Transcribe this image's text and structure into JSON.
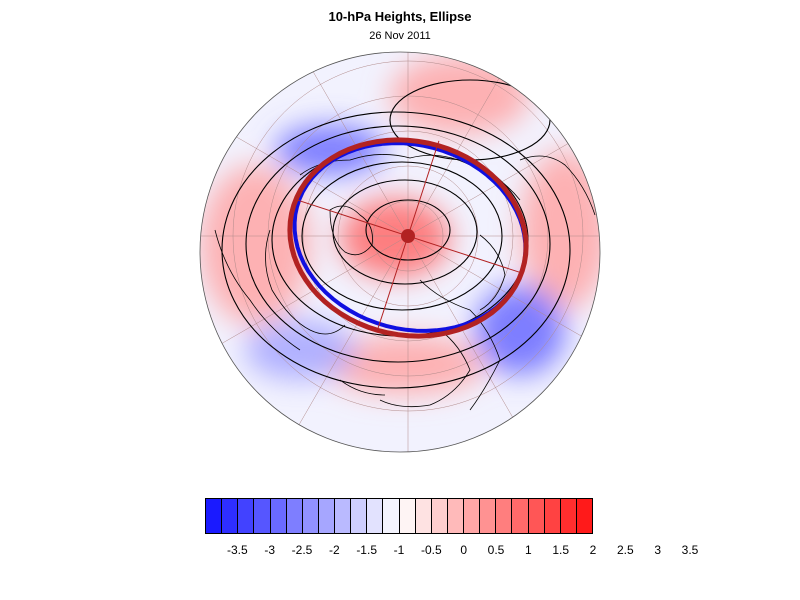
{
  "title": "10-hPa Heights, Ellipse",
  "subtitle": "26 Nov 2011",
  "colorbar": {
    "colors": [
      "#1a1aff",
      "#2e2eff",
      "#4242ff",
      "#5656ff",
      "#6a6aff",
      "#7e7eff",
      "#9292ff",
      "#a6a6ff",
      "#babaff",
      "#cecefe",
      "#e2e2fe",
      "#f4f4fe",
      "#fef4f4",
      "#fee2e2",
      "#fecece",
      "#ffbaba",
      "#ffa6a6",
      "#ff9292",
      "#ff7e7e",
      "#ff6a6a",
      "#ff5656",
      "#ff4242",
      "#ff2e2e",
      "#ff1a1a"
    ],
    "labels": [
      "-3.5",
      "-3",
      "-2.5",
      "-2",
      "-1.5",
      "-1",
      "-0.5",
      "0",
      "0.5",
      "1",
      "1.5",
      "2",
      "2.5",
      "3",
      "3.5"
    ]
  },
  "map": {
    "projection": "orthographic polar (north pole)",
    "contour_color": "#000000",
    "coastline_color": "#000000",
    "blue_ellipse_color": "#1010e0",
    "red_ellipse_color": "#b22222",
    "center_marker_color": "#b22222",
    "anomaly_blobs": [
      {
        "sign": "positive",
        "strength": "strong",
        "region": "pole"
      },
      {
        "sign": "positive",
        "strength": "moderate",
        "region": "west"
      },
      {
        "sign": "positive",
        "strength": "moderate",
        "region": "east"
      },
      {
        "sign": "positive",
        "strength": "moderate",
        "region": "north"
      },
      {
        "sign": "positive",
        "strength": "moderate",
        "region": "south"
      },
      {
        "sign": "negative",
        "strength": "strong",
        "region": "northwest"
      },
      {
        "sign": "negative",
        "strength": "strong",
        "region": "southeast"
      },
      {
        "sign": "negative",
        "strength": "moderate",
        "region": "southwest"
      }
    ]
  }
}
